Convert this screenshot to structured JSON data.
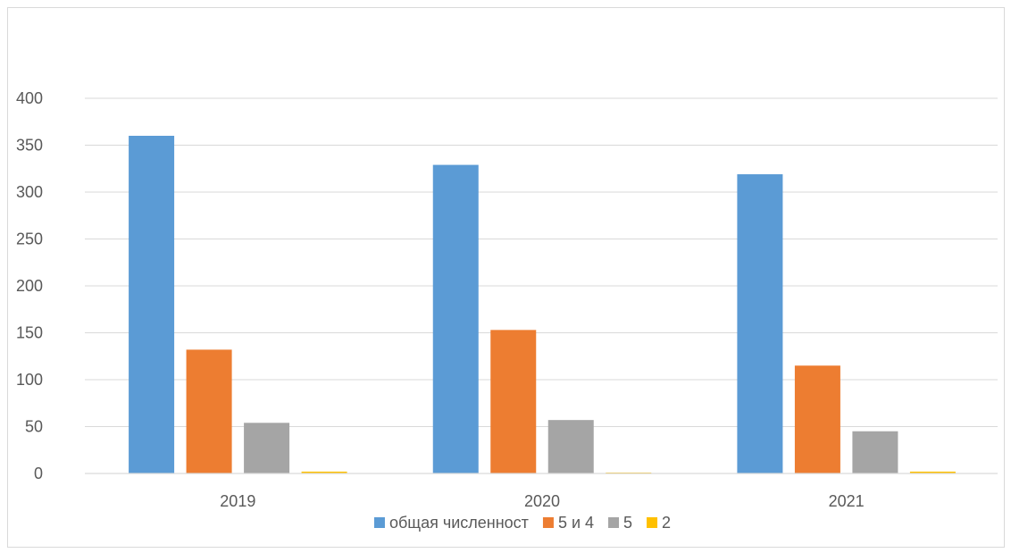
{
  "chart_data": {
    "type": "bar",
    "title": "",
    "xlabel": "",
    "ylabel": "",
    "categories": [
      "2019",
      "2020",
      "2021"
    ],
    "series": [
      {
        "name": "общая численност",
        "color": "#5b9bd5",
        "values": [
          360,
          329,
          319
        ]
      },
      {
        "name": "5 и 4",
        "color": "#ed7d31",
        "values": [
          132,
          153,
          115
        ]
      },
      {
        "name": "5",
        "color": "#a5a5a5",
        "values": [
          54,
          57,
          45
        ]
      },
      {
        "name": "2",
        "color": "#ffc000",
        "values": [
          2,
          1,
          2
        ]
      }
    ],
    "ylim": [
      0,
      400
    ],
    "yticks": [
      "0",
      "50",
      "100",
      "150",
      "200",
      "250",
      "300",
      "350",
      "400"
    ],
    "grid": true,
    "legend": "bottom"
  }
}
